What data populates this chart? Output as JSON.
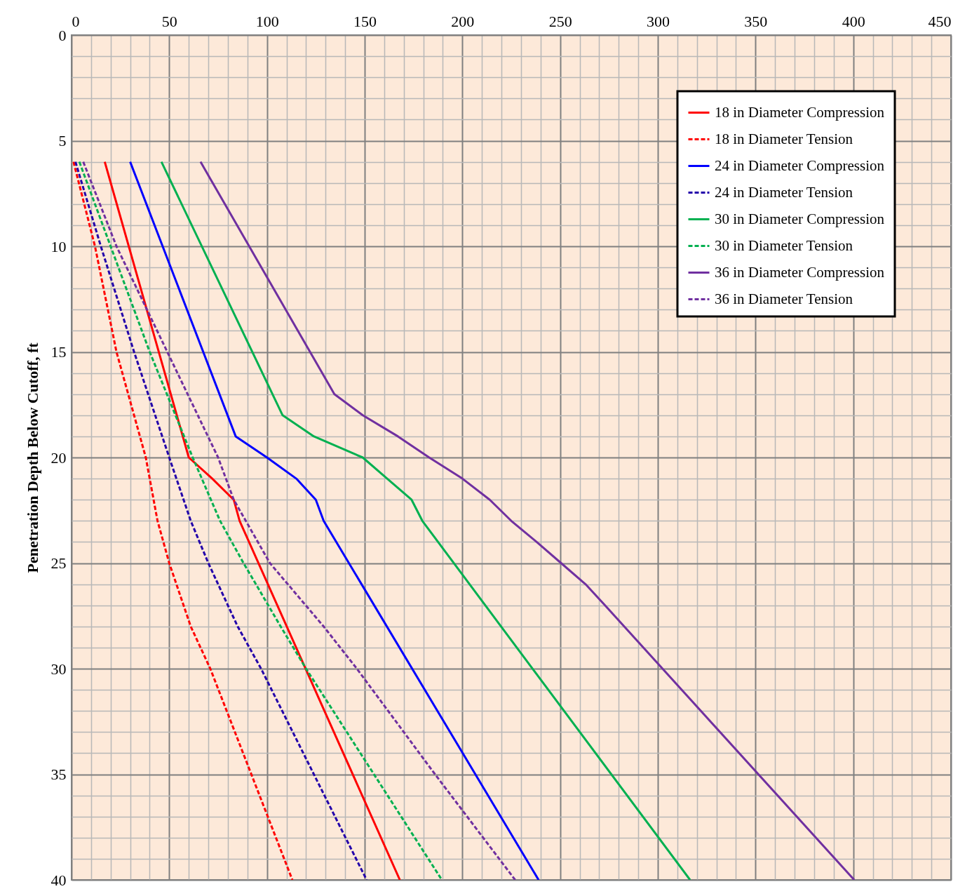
{
  "chart_data": {
    "type": "line",
    "ylabel": "Penetration Depth Below Cutoff, ft",
    "xlim": [
      0,
      450
    ],
    "xticks": [
      0,
      50,
      100,
      150,
      200,
      250,
      300,
      350,
      400,
      450
    ],
    "ylim": [
      40,
      0
    ],
    "yticks": [
      0,
      5,
      10,
      15,
      20,
      25,
      30,
      35,
      40
    ],
    "grid": true,
    "legend": "top right",
    "series": [
      {
        "name": "18 in Diameter Compression",
        "color": "#ff0000",
        "line_style": "solid",
        "x": [
          17,
          60,
          72,
          83,
          86,
          168
        ],
        "values": [
          6,
          20,
          21,
          22,
          23,
          40
        ]
      },
      {
        "name": "18 in Diameter Tension",
        "color": "#ff0000",
        "line_style": "dashed",
        "x": [
          1,
          12,
          23,
          38,
          44,
          50,
          61,
          71,
          113
        ],
        "values": [
          6,
          10,
          15,
          20,
          23,
          25,
          28,
          30,
          40
        ]
      },
      {
        "name": "24 in Diameter Compression",
        "color": "#0000ff",
        "line_style": "solid",
        "x": [
          30,
          84,
          100,
          115,
          125,
          129,
          239
        ],
        "values": [
          6,
          19,
          20,
          21,
          22,
          23,
          40
        ]
      },
      {
        "name": "24 in Diameter Tension",
        "color": "#2200aa",
        "line_style": "dashed",
        "x": [
          2,
          15,
          32,
          50,
          61,
          70,
          85,
          97,
          151
        ],
        "values": [
          6,
          10,
          15,
          20,
          23,
          25,
          28,
          30,
          40
        ]
      },
      {
        "name": "30 in Diameter Compression",
        "color": "#00b050",
        "line_style": "solid",
        "x": [
          46,
          108,
          124,
          149,
          161.5,
          174,
          179.5,
          316.5
        ],
        "values": [
          6,
          18,
          19,
          20,
          21,
          22,
          23,
          40
        ]
      },
      {
        "name": "30 in Diameter Tension",
        "color": "#00b050",
        "line_style": "dashed",
        "x": [
          4,
          20,
          40,
          62,
          76,
          88,
          107,
          120,
          189.5
        ],
        "values": [
          6,
          10,
          15,
          20,
          23,
          25,
          28,
          30,
          40
        ]
      },
      {
        "name": "36 in Diameter Compression",
        "color": "#7030a0",
        "line_style": "solid",
        "x": [
          66,
          134.5,
          149,
          167,
          183,
          200,
          214,
          225,
          238,
          250.5,
          263,
          273,
          400.5
        ],
        "values": [
          6,
          17,
          18,
          19,
          20,
          21,
          22,
          23,
          24,
          25,
          26,
          27,
          40
        ]
      },
      {
        "name": "36 in Diameter Tension",
        "color": "#7030a0",
        "line_style": "dashed",
        "x": [
          6,
          23,
          49,
          75,
          83,
          101.5,
          129,
          146,
          186,
          227
        ],
        "values": [
          6,
          10,
          15,
          20,
          22,
          25,
          28,
          30,
          35,
          40
        ]
      }
    ]
  }
}
